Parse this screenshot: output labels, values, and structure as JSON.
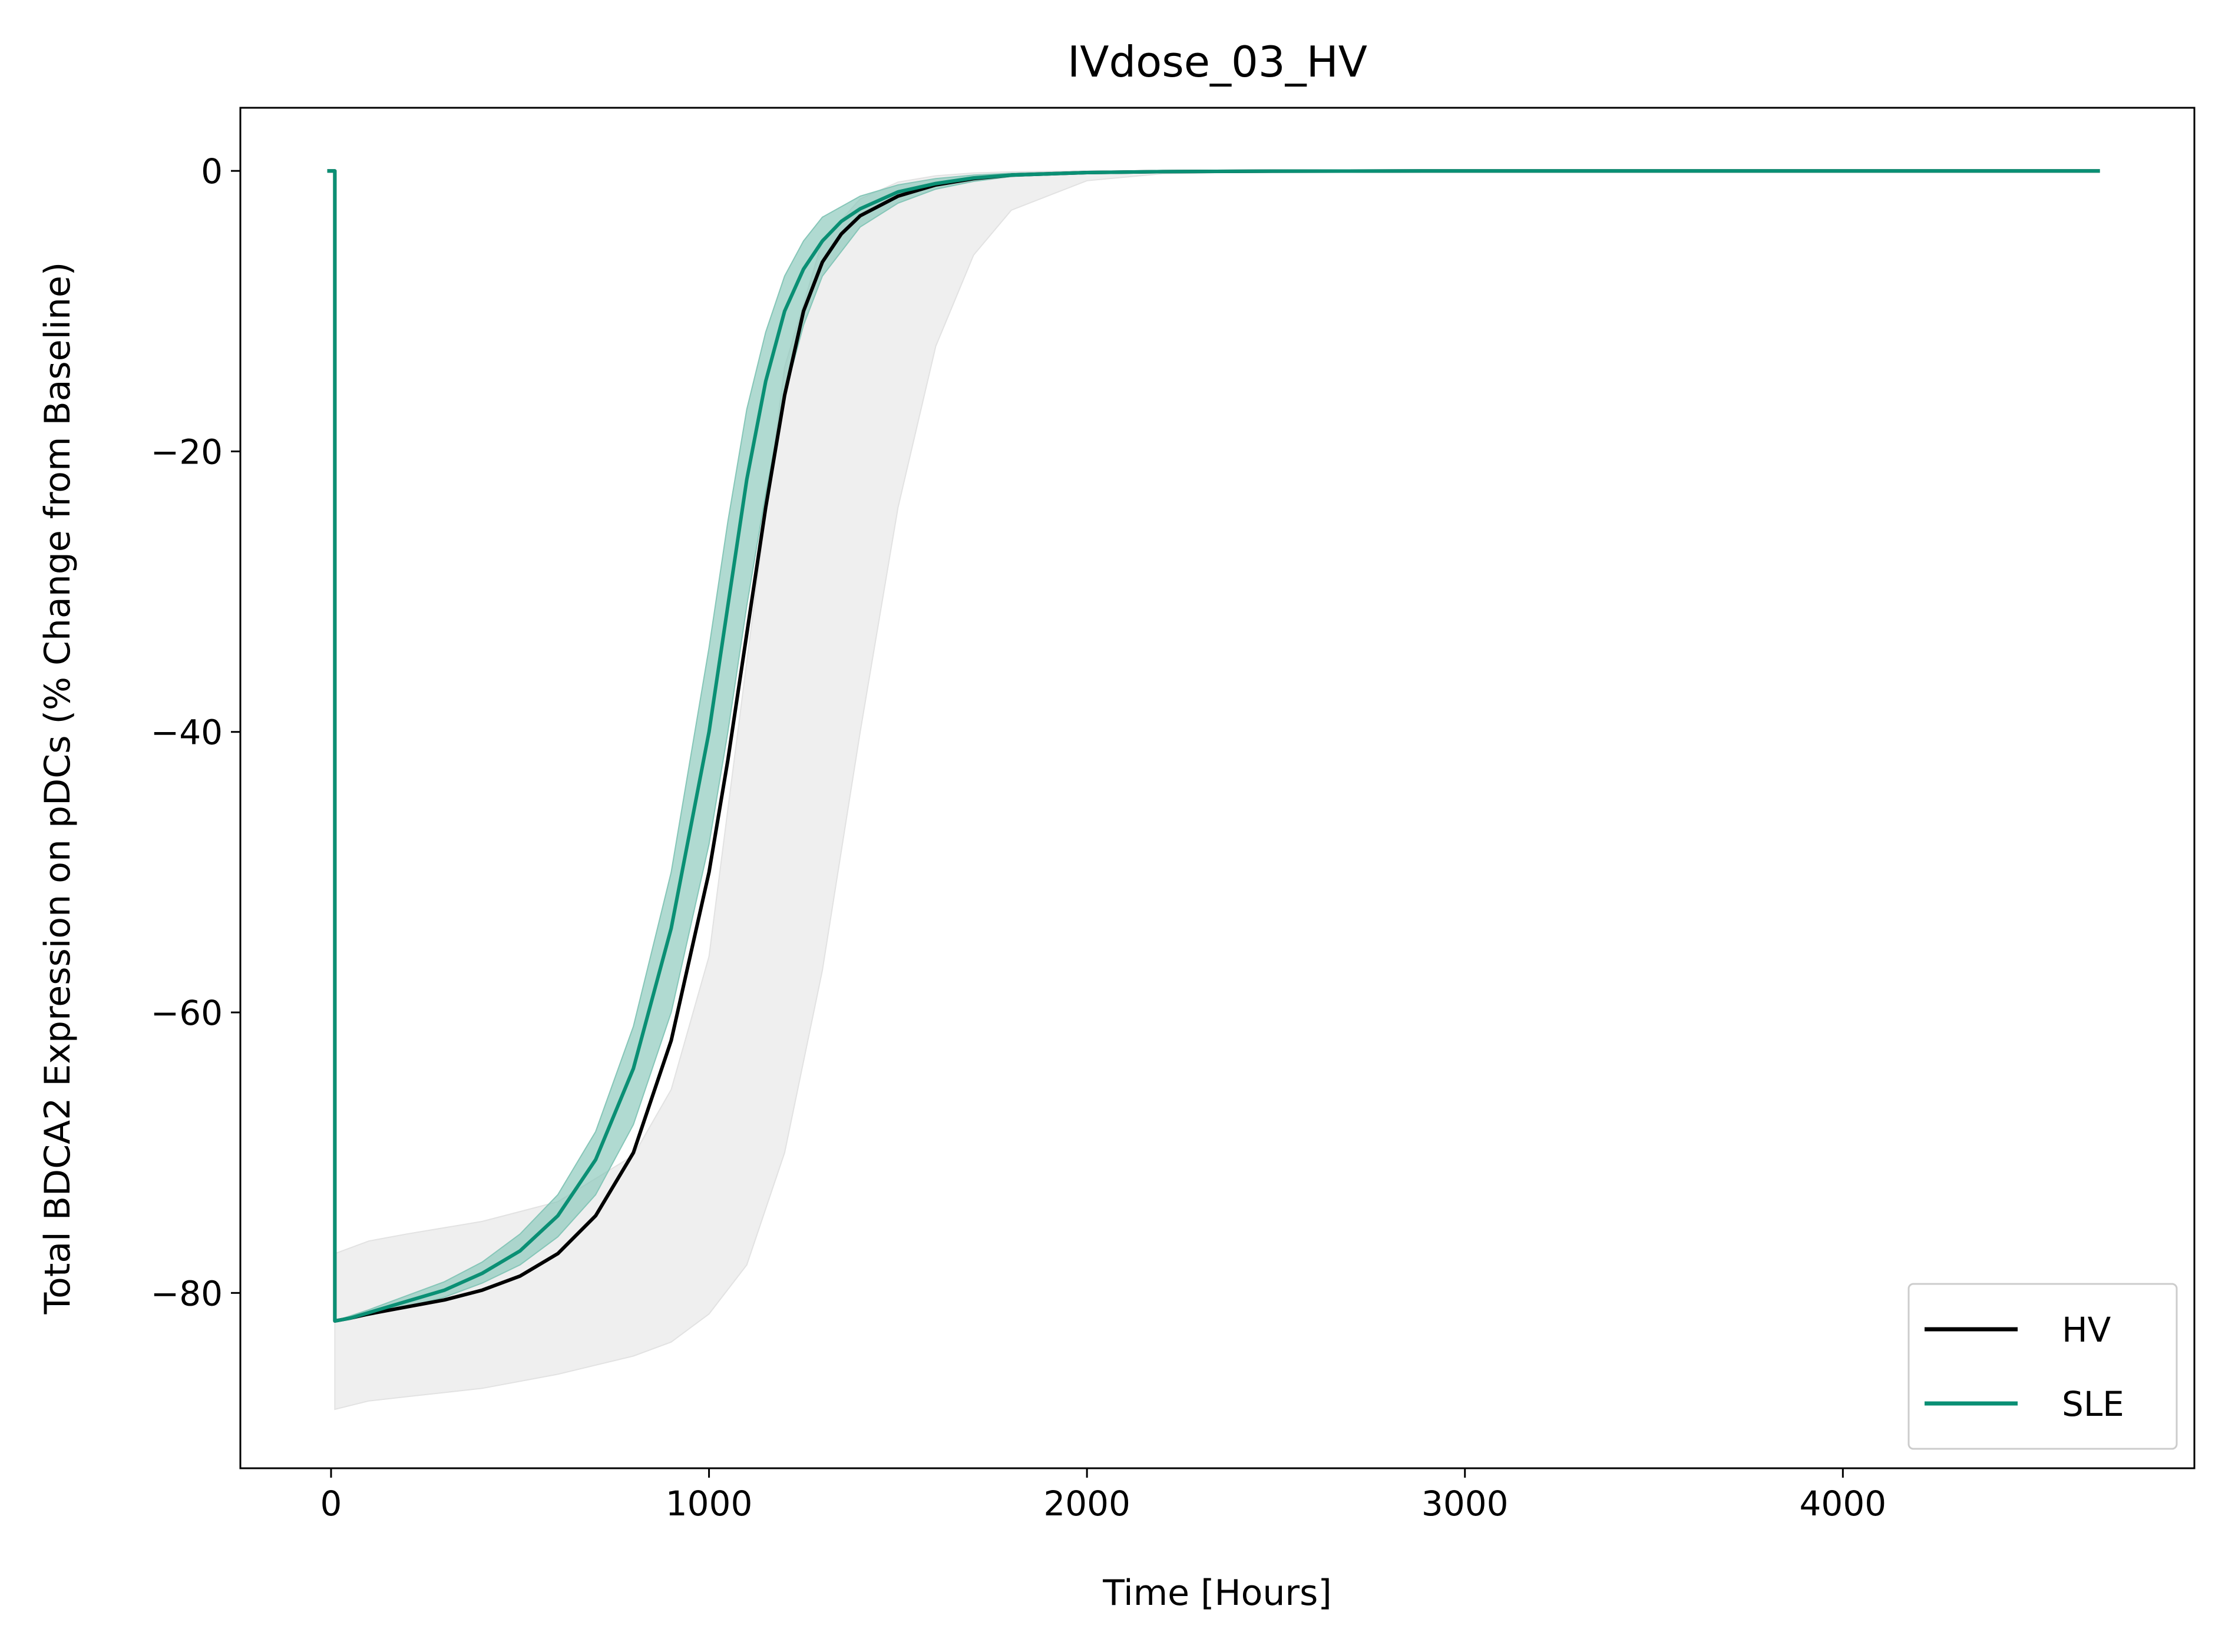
{
  "chart_data": {
    "type": "line",
    "title": "IVdose_03_HV",
    "xlabel": "Time [Hours]",
    "ylabel": "Total BDCA2 Expression on pDCs (% Change from Baseline)",
    "xlim": [
      -240,
      4930
    ],
    "ylim": [
      -92.5,
      4.5
    ],
    "xticks": [
      0,
      1000,
      2000,
      3000,
      4000
    ],
    "xtick_labels": [
      "0",
      "1000",
      "2000",
      "3000",
      "4000"
    ],
    "yticks": [
      0,
      -20,
      -40,
      -60,
      -80
    ],
    "ytick_labels": [
      "0",
      "−20",
      "−40",
      "−60",
      "−80"
    ],
    "grid": false,
    "legend_position": "lower right",
    "colors": {
      "HV": "#000000",
      "SLE": "#0a8f74",
      "HV_band": "#e2e2e2",
      "SLE_band": "#86c6b8"
    },
    "series": [
      {
        "name": "HV",
        "role": "median",
        "x": [
          -10,
          0,
          10,
          10,
          50,
          100,
          200,
          300,
          400,
          500,
          600,
          700,
          800,
          900,
          1000,
          1050,
          1100,
          1150,
          1200,
          1250,
          1300,
          1350,
          1400,
          1500,
          1600,
          1700,
          1800,
          2000,
          2200,
          2500,
          3000,
          4000,
          4680
        ],
        "y": [
          0,
          0,
          0,
          -82,
          -81.8,
          -81.5,
          -81,
          -80.5,
          -79.8,
          -78.8,
          -77.2,
          -74.5,
          -70,
          -62,
          -50,
          -42,
          -33,
          -24,
          -16,
          -10,
          -6.5,
          -4.5,
          -3.2,
          -1.8,
          -1.0,
          -0.55,
          -0.3,
          -0.12,
          -0.05,
          -0.02,
          0,
          0,
          0
        ]
      },
      {
        "name": "SLE",
        "role": "median",
        "x": [
          -10,
          0,
          10,
          10,
          50,
          100,
          200,
          300,
          400,
          500,
          600,
          700,
          800,
          900,
          1000,
          1050,
          1100,
          1150,
          1200,
          1250,
          1300,
          1350,
          1400,
          1500,
          1600,
          1700,
          1800,
          2000,
          2200,
          2500,
          3000,
          4000,
          4680
        ],
        "y": [
          0,
          0,
          0,
          -82,
          -81.8,
          -81.4,
          -80.6,
          -79.8,
          -78.6,
          -77,
          -74.5,
          -70.5,
          -64,
          -54,
          -40,
          -31,
          -22,
          -15,
          -10,
          -7,
          -5,
          -3.6,
          -2.7,
          -1.5,
          -0.9,
          -0.5,
          -0.3,
          -0.12,
          -0.05,
          -0.02,
          0,
          0,
          0
        ]
      }
    ],
    "bands": [
      {
        "for": "HV",
        "x": [
          10,
          100,
          200,
          400,
          600,
          800,
          900,
          1000,
          1100,
          1200,
          1300,
          1400,
          1500,
          1600,
          1700,
          1800,
          2000,
          2200,
          2500,
          3000
        ],
        "lower": [
          -88.3,
          -87.7,
          -87.4,
          -86.8,
          -85.8,
          -84.5,
          -83.5,
          -81.5,
          -78,
          -70,
          -57,
          -40,
          -24,
          -12.5,
          -6,
          -2.8,
          -0.7,
          -0.2,
          -0.05,
          0
        ],
        "upper": [
          -77.2,
          -76.3,
          -75.8,
          -74.9,
          -73.5,
          -70.2,
          -65.5,
          -56,
          -35,
          -14,
          -5,
          -2,
          -0.8,
          -0.35,
          -0.15,
          -0.07,
          0,
          0,
          0,
          0
        ]
      },
      {
        "for": "SLE",
        "x": [
          10,
          100,
          200,
          300,
          400,
          500,
          600,
          700,
          800,
          900,
          1000,
          1050,
          1100,
          1150,
          1200,
          1250,
          1300,
          1400,
          1500,
          1600,
          1700,
          1800,
          2000,
          2200,
          2500
        ],
        "lower": [
          -82,
          -81.6,
          -81,
          -80.3,
          -79.3,
          -78,
          -76,
          -73,
          -68,
          -60,
          -48,
          -40,
          -31,
          -23,
          -16,
          -11,
          -7.5,
          -4,
          -2.3,
          -1.3,
          -0.75,
          -0.4,
          -0.15,
          -0.05,
          0
        ],
        "upper": [
          -82,
          -81.2,
          -80.2,
          -79.2,
          -77.8,
          -75.8,
          -73,
          -68.5,
          -61,
          -50,
          -34,
          -25,
          -17,
          -11.5,
          -7.5,
          -5,
          -3.3,
          -1.8,
          -1.0,
          -0.55,
          -0.3,
          -0.17,
          -0.05,
          0,
          0
        ]
      }
    ],
    "legend": [
      {
        "label": "HV",
        "color": "#000000"
      },
      {
        "label": "SLE",
        "color": "#0a8f74"
      }
    ]
  }
}
